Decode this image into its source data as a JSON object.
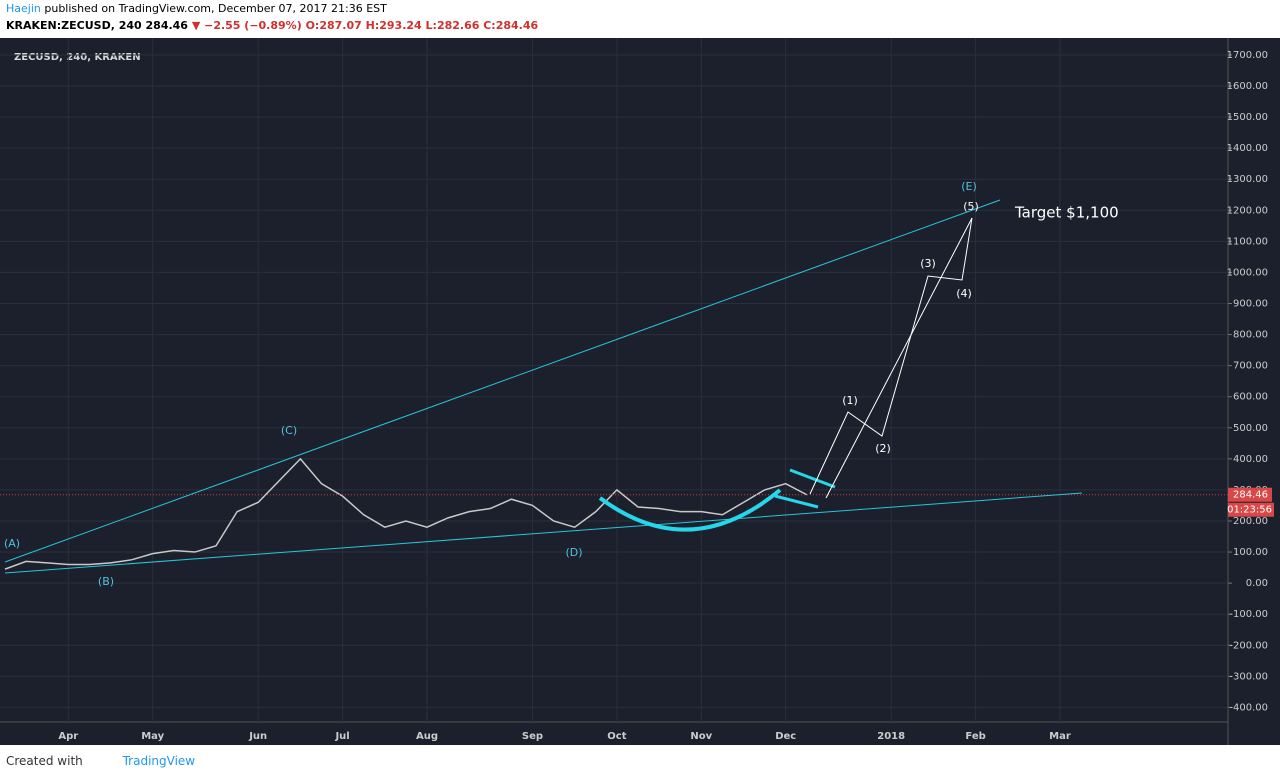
{
  "header": {
    "author": "Haejin",
    "published": "published on TradingView.com, December 07, 2017 21:36 EST",
    "symbol": "KRAKEN:ZECUSD, 240",
    "last": "284.46",
    "change": "▼ −2.55 (−0.89%)",
    "ohlc": [
      "O:287.07",
      "H:293.24",
      "L:282.66",
      "C:284.46"
    ]
  },
  "footer": {
    "created": "Created with",
    "brand": "TradingView"
  },
  "chart_data": {
    "type": "line",
    "title": "ZECUSD, 240, KRAKEN",
    "categories": [
      null,
      null,
      null,
      "Apr",
      null,
      null,
      null,
      "May",
      null,
      null,
      null,
      null,
      "Jun",
      null,
      null,
      null,
      "Jul",
      null,
      null,
      null,
      "Aug",
      null,
      null,
      null,
      null,
      "Sep",
      null,
      null,
      null,
      "Oct",
      null,
      null,
      null,
      "Nov",
      null,
      null,
      null,
      "Dec",
      null,
      null,
      null,
      null,
      "2018",
      null,
      null,
      null,
      "Feb",
      null,
      null,
      null,
      "Mar",
      null,
      null,
      null,
      null,
      null,
      null,
      null
    ],
    "series": [
      {
        "name": "ZECUSD",
        "color": "#c9c9c9",
        "values": [
          45,
          70,
          65,
          60,
          60,
          65,
          75,
          95,
          105,
          100,
          120,
          230,
          260,
          330,
          400,
          320,
          280,
          220,
          180,
          200,
          180,
          210,
          230,
          240,
          270,
          250,
          200,
          180,
          230,
          300,
          245,
          240,
          230,
          230,
          220,
          260,
          300,
          320,
          284.46,
          null,
          null,
          null,
          null,
          null,
          null,
          null,
          null,
          null,
          null,
          null,
          null,
          null,
          null,
          null,
          null,
          null,
          null,
          null
        ]
      }
    ],
    "ylim": [
      -447,
      1732
    ],
    "yticks": [
      {
        "value": -400,
        "label": "-400.00"
      },
      {
        "value": -300,
        "label": "-300.00"
      },
      {
        "value": -200,
        "label": "-200.00"
      },
      {
        "value": -100,
        "label": "-100.00"
      },
      {
        "value": 0,
        "label": "0.00"
      },
      {
        "value": 100,
        "label": "100.00"
      },
      {
        "value": 200,
        "label": "200.00"
      },
      {
        "value": 300,
        "label": "300.00"
      },
      {
        "value": 400,
        "label": "400.00"
      },
      {
        "value": 500,
        "label": "500.00"
      },
      {
        "value": 600,
        "label": "600.00"
      },
      {
        "value": 700,
        "label": "700.00"
      },
      {
        "value": 800,
        "label": "800.00"
      },
      {
        "value": 900,
        "label": "900.00"
      },
      {
        "value": 1000,
        "label": "1000.00"
      },
      {
        "value": 1100,
        "label": "1100.00"
      },
      {
        "value": 1200,
        "label": "1200.00"
      },
      {
        "value": 1300,
        "label": "1300.00"
      },
      {
        "value": 1400,
        "label": "1400.00"
      },
      {
        "value": 1500,
        "label": "1500.00"
      },
      {
        "value": 1600,
        "label": "1600.00"
      },
      {
        "value": 1700,
        "label": "1700.00"
      }
    ],
    "grid": true,
    "last_price": {
      "value": 284.46,
      "label": "284.46"
    },
    "countdown": "01:23:56",
    "annotations": [
      "(A)",
      "(B)",
      "(C)",
      "(D)",
      "(E)",
      "(1)",
      "(2)",
      "(3)",
      "(4)",
      "(5)",
      "Target $1,100"
    ]
  }
}
